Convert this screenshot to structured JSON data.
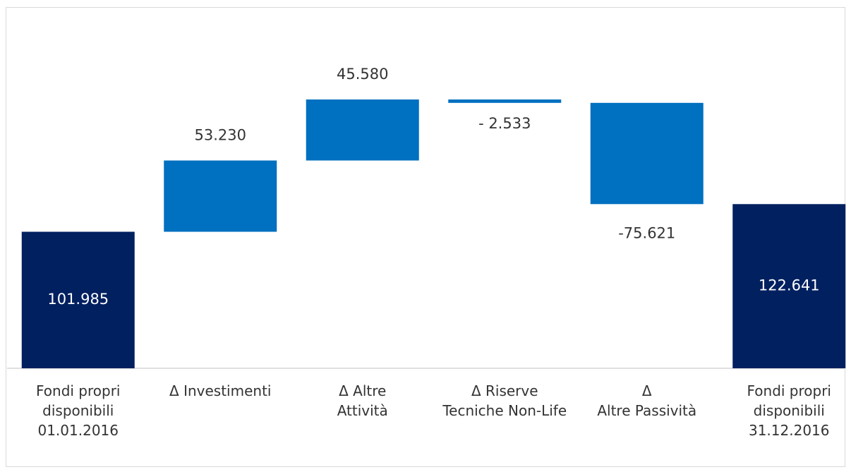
{
  "chart_data": {
    "type": "waterfall",
    "categories": [
      "Fondi propri\ndisponibili\n01.01.2016",
      "Δ Investimenti",
      "Δ Altre\nAttività",
      "Δ Riserve\nTecniche Non-Life",
      "Δ\nAltre Passività",
      "Fondi propri\ndisponibili\n31.12.2016"
    ],
    "values": [
      101985,
      53230,
      45580,
      -2533,
      -75621,
      122641
    ],
    "value_labels": [
      "101.985",
      "53.230",
      "45.580",
      "- 2.533",
      "-75.621",
      "122.641"
    ],
    "colors": [
      "#002060",
      "#0070c0",
      "#0070c0",
      "#0070c0",
      "#0070c0",
      "#002060"
    ]
  }
}
